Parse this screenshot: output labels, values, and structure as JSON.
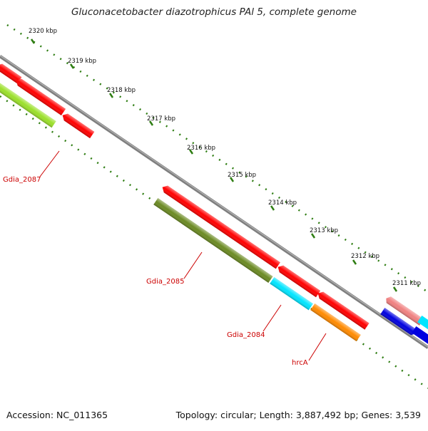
{
  "title": "Gluconacetobacter diazotrophicus PAl 5, complete genome",
  "footer": {
    "accession": "Accession: NC_011365",
    "summary": "Topology: circular; Length: 3,887,492 bp; Genes: 3,539"
  },
  "colors": {
    "backbone": "#808080",
    "tick": "#2e7d12",
    "red": "#ff0000",
    "lime": "#9be02a",
    "olive": "#6b8a23",
    "cyan": "#00e5ff",
    "orange": "#ff8a00",
    "pink": "#f08080",
    "blue": "#0000e0",
    "label": "#cc0000"
  },
  "ticks": [
    {
      "label": "2320 kbp"
    },
    {
      "label": "2319 kbp"
    },
    {
      "label": "2318 kbp"
    },
    {
      "label": "2317 kbp"
    },
    {
      "label": "2316 kbp"
    },
    {
      "label": "2315 kbp"
    },
    {
      "label": "2314 kbp"
    },
    {
      "label": "2313 kbp"
    },
    {
      "label": "2312 kbp"
    },
    {
      "label": "2311 kbp"
    }
  ],
  "gene_labels": [
    {
      "text": "Gdia_2087"
    },
    {
      "text": "Gdia_2085"
    },
    {
      "text": "Gdia_2084"
    },
    {
      "text": "hrcA"
    }
  ]
}
